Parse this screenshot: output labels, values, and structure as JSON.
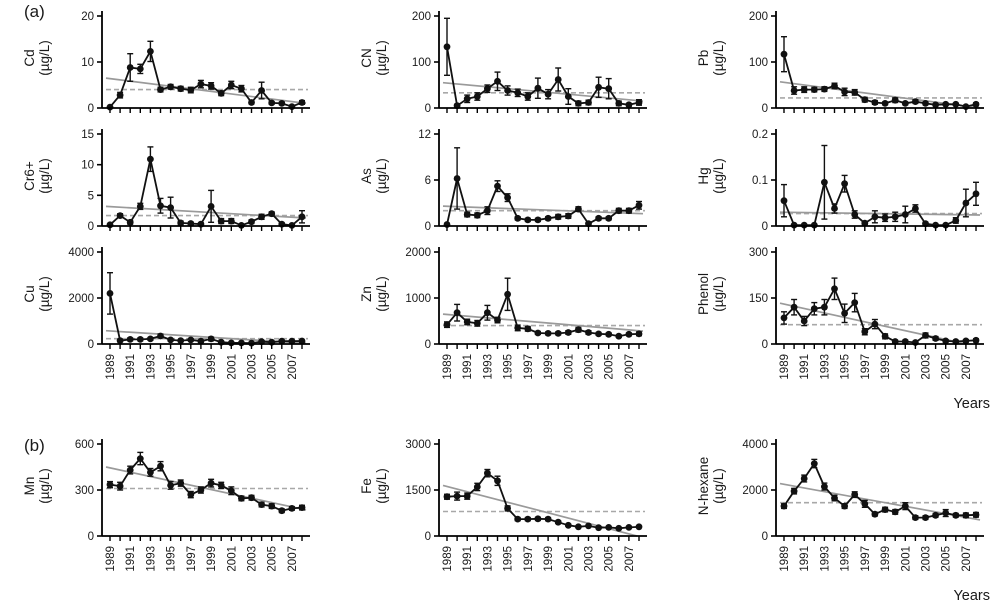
{
  "panel_a_label": "(a)",
  "panel_b_label": "(b)",
  "x_axis_label": "Years",
  "colors": {
    "axis": "#000000",
    "marker": "#111111",
    "series_line": "#111111",
    "trend_line": "#9a9a9a",
    "dashed_line": "#a8a8a8",
    "text": "#1a1a1a"
  },
  "years": [
    1989,
    1990,
    1991,
    1992,
    1993,
    1994,
    1995,
    1996,
    1997,
    1998,
    1999,
    2000,
    2001,
    2002,
    2003,
    2004,
    2005,
    2006,
    2007,
    2008
  ],
  "x_tick_labels": [
    "1989",
    "1991",
    "1993",
    "1995",
    "1997",
    "1999",
    "2001",
    "2003",
    "2005",
    "2007"
  ],
  "chart_data": [
    {
      "id": "cd",
      "row": "a1",
      "type": "line",
      "ylabel": "Cd",
      "unit": "(µg/L)",
      "ylim": [
        0,
        20
      ],
      "yticks": [
        0,
        10,
        20
      ],
      "show_x_labels": false,
      "values": [
        0.2,
        2.8,
        8.8,
        8.5,
        12.3,
        4.0,
        4.6,
        4.2,
        3.9,
        5.2,
        4.8,
        3.2,
        5.0,
        4.2,
        1.2,
        3.8,
        1.1,
        1.0,
        0.3,
        1.2
      ],
      "errors": [
        0.1,
        0.6,
        3.0,
        1.0,
        2.2,
        0.5,
        0.5,
        0.5,
        0.6,
        0.8,
        0.7,
        0.5,
        0.8,
        0.7,
        0.3,
        1.8,
        0.3,
        0.3,
        0.2,
        0.4
      ],
      "trend": [
        6.5,
        1.0
      ],
      "dashed": 4.0
    },
    {
      "id": "cn",
      "row": "a1",
      "type": "line",
      "ylabel": "CN",
      "unit": "(µg/L)",
      "ylim": [
        0,
        200
      ],
      "yticks": [
        0,
        100,
        200
      ],
      "show_x_labels": false,
      "values": [
        133,
        5,
        20,
        25,
        42,
        58,
        38,
        33,
        25,
        43,
        30,
        62,
        25,
        10,
        12,
        45,
        42,
        10,
        7,
        12
      ],
      "errors": [
        62,
        3,
        8,
        8,
        8,
        20,
        10,
        8,
        8,
        22,
        10,
        25,
        17,
        5,
        5,
        22,
        22,
        5,
        3,
        6
      ],
      "trend": [
        55,
        15
      ],
      "dashed": 33
    },
    {
      "id": "pb",
      "row": "a1",
      "type": "line",
      "ylabel": "Pb",
      "unit": "(µg/L)",
      "ylim": [
        0,
        200
      ],
      "yticks": [
        0,
        100,
        200
      ],
      "show_x_labels": false,
      "values": [
        117,
        38,
        40,
        40,
        41,
        48,
        35,
        34,
        18,
        12,
        10,
        17,
        10,
        14,
        10,
        7,
        8,
        8,
        3,
        8
      ],
      "errors": [
        38,
        8,
        6,
        5,
        5,
        6,
        8,
        6,
        5,
        4,
        3,
        5,
        3,
        4,
        3,
        2,
        2,
        2,
        2,
        3
      ],
      "trend": [
        57,
        0
      ],
      "dashed": 22
    },
    {
      "id": "cr6",
      "row": "a2",
      "type": "line",
      "ylabel": "Cr6+",
      "unit": "(µg/L)",
      "ylim": [
        0,
        15
      ],
      "yticks": [
        0,
        5,
        10,
        15
      ],
      "show_x_labels": false,
      "values": [
        0.2,
        1.7,
        0.6,
        3.2,
        10.9,
        3.3,
        3.0,
        0.5,
        0.4,
        0.3,
        3.2,
        0.8,
        0.8,
        0.1,
        0.7,
        1.5,
        2.0,
        0.3,
        0.1,
        1.5
      ],
      "errors": [
        0.1,
        0.3,
        0.3,
        0.5,
        2.0,
        1.2,
        1.7,
        0.3,
        0.2,
        0.2,
        2.6,
        0.4,
        0.4,
        0.1,
        0.3,
        0.4,
        0.3,
        0.2,
        0.1,
        1.0
      ],
      "trend": [
        3.2,
        1.3
      ],
      "dashed": 1.7
    },
    {
      "id": "as",
      "row": "a2",
      "type": "line",
      "ylabel": "As",
      "unit": "(µg/L)",
      "ylim": [
        0,
        12
      ],
      "yticks": [
        0,
        6,
        12
      ],
      "show_x_labels": false,
      "values": [
        0.2,
        6.2,
        1.5,
        1.4,
        2.0,
        5.2,
        3.7,
        1.0,
        0.8,
        0.8,
        1.0,
        1.2,
        1.3,
        2.2,
        0.3,
        1.0,
        1.0,
        2.0,
        2.0,
        2.7
      ],
      "errors": [
        0.1,
        4.0,
        0.3,
        0.3,
        0.5,
        0.7,
        0.5,
        0.2,
        0.2,
        0.2,
        0.2,
        0.3,
        0.3,
        0.3,
        0.1,
        0.2,
        0.2,
        0.3,
        0.3,
        0.5
      ],
      "trend": [
        2.6,
        1.6
      ],
      "dashed": 2.0
    },
    {
      "id": "hg",
      "row": "a2",
      "type": "line",
      "ylabel": "Hg",
      "unit": "(µg/L)",
      "ylim": [
        0,
        0.2
      ],
      "yticks": [
        0,
        0.1,
        0.2
      ],
      "show_x_labels": false,
      "values": [
        0.055,
        0.002,
        0.002,
        0.002,
        0.095,
        0.038,
        0.092,
        0.025,
        0.006,
        0.02,
        0.018,
        0.02,
        0.025,
        0.038,
        0.005,
        0.002,
        0.002,
        0.012,
        0.05,
        0.07
      ],
      "errors": [
        0.035,
        0.001,
        0.001,
        0.001,
        0.08,
        0.01,
        0.018,
        0.008,
        0.004,
        0.013,
        0.008,
        0.01,
        0.018,
        0.008,
        0.003,
        0.001,
        0.001,
        0.006,
        0.03,
        0.025
      ],
      "trend": [
        0.03,
        0.024
      ],
      "dashed": 0.027
    },
    {
      "id": "cu",
      "row": "a3",
      "type": "line",
      "ylabel": "Cu",
      "unit": "(µg/L)",
      "ylim": [
        0,
        4000
      ],
      "yticks": [
        0,
        2000,
        4000
      ],
      "show_x_labels": true,
      "values": [
        2200,
        150,
        200,
        200,
        220,
        350,
        180,
        150,
        180,
        120,
        220,
        80,
        50,
        50,
        40,
        100,
        80,
        120,
        120,
        130
      ],
      "errors": [
        900,
        50,
        60,
        60,
        60,
        80,
        50,
        40,
        50,
        40,
        80,
        30,
        20,
        20,
        15,
        30,
        25,
        40,
        40,
        40
      ],
      "trend": [
        580,
        30
      ],
      "dashed": 230
    },
    {
      "id": "zn",
      "row": "a3",
      "type": "line",
      "ylabel": "Zn",
      "unit": "(µg/L)",
      "ylim": [
        0,
        2000
      ],
      "yticks": [
        0,
        1000,
        2000
      ],
      "show_x_labels": true,
      "values": [
        420,
        680,
        480,
        450,
        680,
        520,
        1080,
        350,
        330,
        240,
        230,
        230,
        250,
        310,
        250,
        220,
        210,
        170,
        210,
        220
      ],
      "errors": [
        60,
        180,
        60,
        60,
        160,
        60,
        350,
        60,
        50,
        30,
        30,
        30,
        40,
        50,
        40,
        30,
        30,
        25,
        30,
        40
      ],
      "trend": [
        650,
        280
      ],
      "dashed": 400
    },
    {
      "id": "phenol",
      "row": "a3",
      "type": "line",
      "ylabel": "Phenol",
      "unit": "(µg/L)",
      "ylim": [
        0,
        300
      ],
      "yticks": [
        0,
        150,
        300
      ],
      "show_x_labels": true,
      "values": [
        85,
        120,
        75,
        115,
        120,
        180,
        100,
        135,
        40,
        65,
        25,
        8,
        8,
        5,
        28,
        18,
        10,
        8,
        10,
        12
      ],
      "errors": [
        20,
        25,
        15,
        20,
        25,
        35,
        30,
        30,
        10,
        15,
        8,
        4,
        4,
        3,
        8,
        6,
        4,
        3,
        4,
        5
      ],
      "trend": [
        133,
        -10
      ],
      "dashed": 63
    },
    {
      "id": "mn",
      "row": "b1",
      "type": "line",
      "ylabel": "Mn",
      "unit": "(µg/L)",
      "ylim": [
        0,
        600
      ],
      "yticks": [
        0,
        300,
        600
      ],
      "show_x_labels": true,
      "values": [
        335,
        325,
        430,
        505,
        415,
        455,
        330,
        345,
        270,
        300,
        345,
        330,
        295,
        245,
        250,
        205,
        195,
        165,
        180,
        185
      ],
      "errors": [
        20,
        25,
        25,
        40,
        25,
        30,
        25,
        20,
        20,
        20,
        25,
        20,
        25,
        15,
        15,
        15,
        15,
        12,
        12,
        15
      ],
      "trend": [
        450,
        170
      ],
      "dashed": 310
    },
    {
      "id": "fe",
      "row": "b1",
      "type": "line",
      "ylabel": "Fe",
      "unit": "(µg/L)",
      "ylim": [
        0,
        3000
      ],
      "yticks": [
        0,
        1500,
        3000
      ],
      "show_x_labels": true,
      "values": [
        1280,
        1300,
        1300,
        1600,
        2050,
        1800,
        900,
        550,
        550,
        560,
        550,
        450,
        350,
        300,
        330,
        270,
        280,
        250,
        280,
        300
      ],
      "errors": [
        80,
        130,
        100,
        120,
        120,
        150,
        80,
        50,
        50,
        50,
        50,
        40,
        30,
        30,
        30,
        25,
        25,
        25,
        25,
        30
      ],
      "trend": [
        1650,
        -50
      ],
      "dashed": 800
    },
    {
      "id": "nhexane",
      "row": "b1",
      "type": "line",
      "ylabel": "N-hexane",
      "unit": "(µg/L)",
      "ylim": [
        0,
        4000
      ],
      "yticks": [
        0,
        2000,
        4000
      ],
      "show_x_labels": true,
      "values": [
        1300,
        1950,
        2500,
        3150,
        2150,
        1650,
        1300,
        1800,
        1400,
        950,
        1150,
        1050,
        1300,
        800,
        800,
        900,
        1000,
        900,
        900,
        920
      ],
      "errors": [
        100,
        120,
        150,
        180,
        150,
        120,
        100,
        120,
        150,
        80,
        100,
        100,
        150,
        80,
        80,
        80,
        150,
        80,
        100,
        100
      ],
      "trend": [
        2280,
        700
      ],
      "dashed": 1450
    }
  ]
}
